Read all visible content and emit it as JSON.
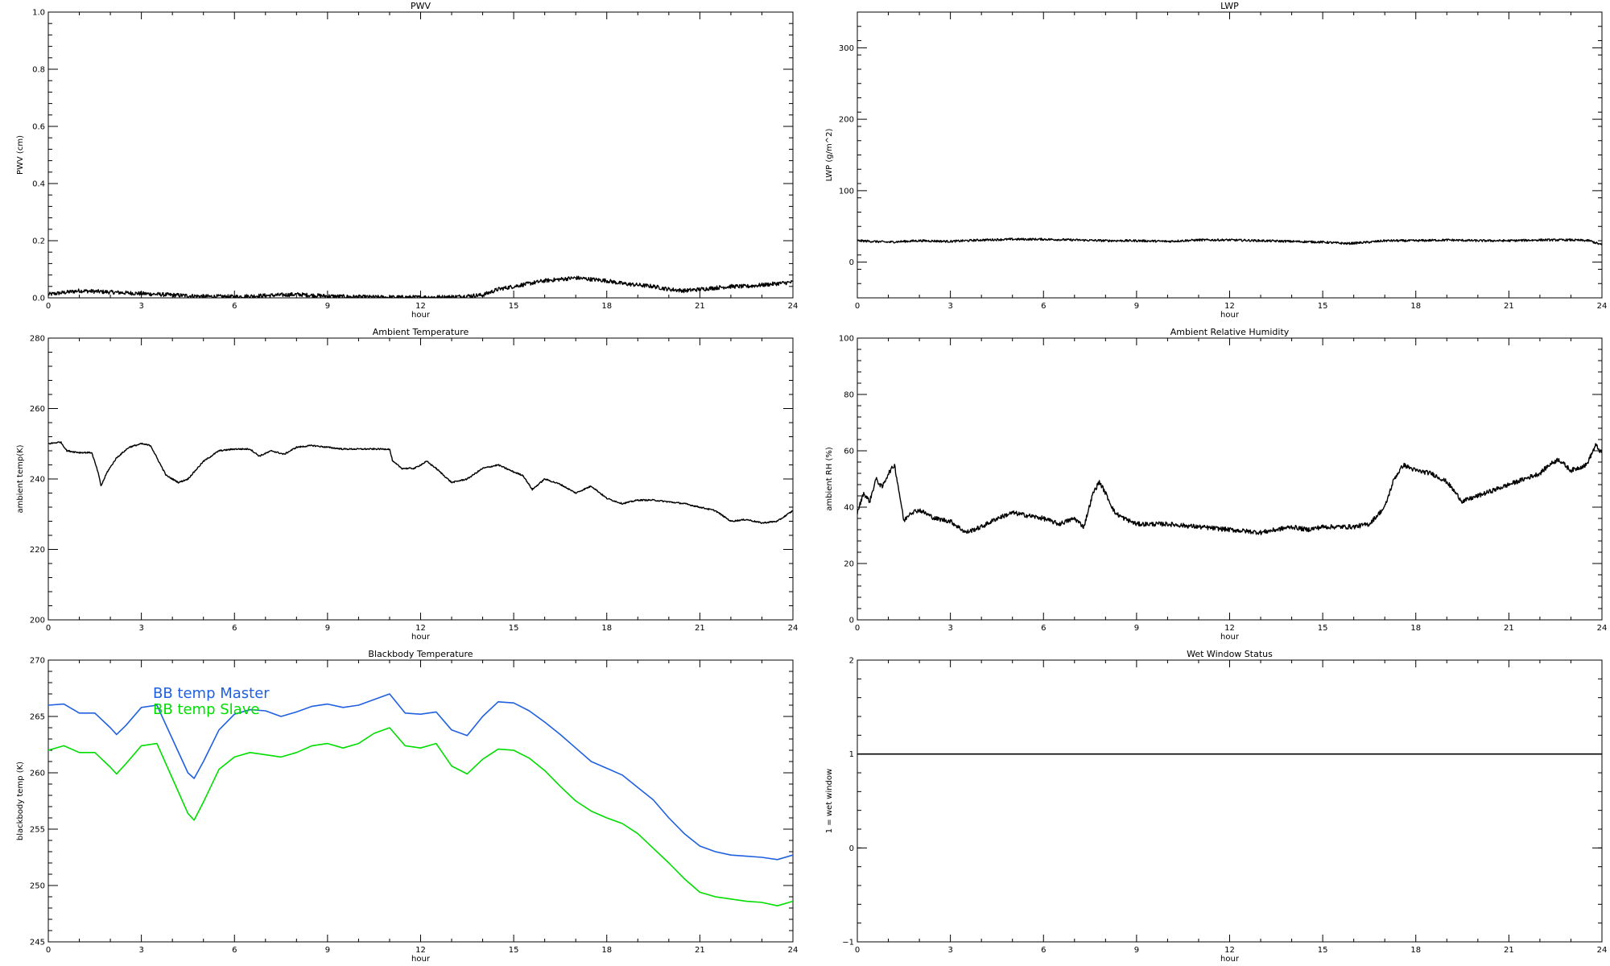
{
  "chart_data": [
    {
      "id": "pwv",
      "type": "line",
      "title": "PWV",
      "xlabel": "hour",
      "ylabel": "PWV (cm)",
      "xlim": [
        0,
        24
      ],
      "ylim": [
        0,
        1
      ],
      "xticks": [
        "0",
        "3",
        "6",
        "9",
        "12",
        "15",
        "18",
        "21",
        "24"
      ],
      "yticks": [
        "0.0",
        "0.2",
        "0.4",
        "0.6",
        "0.8",
        "1.0"
      ],
      "xtick_values": [
        0,
        3,
        6,
        9,
        12,
        15,
        18,
        21,
        24
      ],
      "ytick_values": [
        0,
        0.2,
        0.4,
        0.6,
        0.8,
        1.0
      ],
      "noise": 0.007,
      "series": [
        {
          "color": "#000000",
          "x": [
            0,
            1,
            2,
            3,
            4,
            5,
            6,
            7,
            8,
            9,
            10,
            11,
            12,
            13,
            14,
            14.5,
            15,
            15.5,
            16,
            16.5,
            17,
            17.5,
            18,
            18.5,
            19,
            19.5,
            20,
            20.5,
            21,
            21.5,
            22,
            22.5,
            23,
            23.5,
            24
          ],
          "y": [
            0.012,
            0.025,
            0.02,
            0.015,
            0.01,
            0.005,
            0.004,
            0.008,
            0.012,
            0.006,
            0.003,
            0.002,
            0.002,
            0.003,
            0.01,
            0.03,
            0.04,
            0.05,
            0.06,
            0.065,
            0.07,
            0.065,
            0.06,
            0.05,
            0.045,
            0.04,
            0.03,
            0.025,
            0.03,
            0.035,
            0.04,
            0.04,
            0.045,
            0.05,
            0.055
          ]
        }
      ]
    },
    {
      "id": "lwp",
      "type": "line",
      "title": "LWP",
      "xlabel": "hour",
      "ylabel": "LWP (g/m^2)",
      "xlim": [
        0,
        24
      ],
      "ylim": [
        -50,
        350
      ],
      "xticks": [
        "0",
        "3",
        "6",
        "9",
        "12",
        "15",
        "18",
        "21",
        "24"
      ],
      "yticks": [
        "0",
        "100",
        "200",
        "300"
      ],
      "xtick_values": [
        0,
        3,
        6,
        9,
        12,
        15,
        18,
        21,
        24
      ],
      "ytick_values": [
        0,
        100,
        200,
        300
      ],
      "noise": 1.5,
      "series": [
        {
          "color": "#000000",
          "x": [
            0,
            1,
            2,
            3,
            4,
            5,
            6,
            7,
            8,
            9,
            10,
            11,
            12,
            13,
            14,
            15,
            15.8,
            16.5,
            17,
            18,
            19,
            20,
            21,
            22,
            23,
            23.6,
            24
          ],
          "y": [
            30,
            28,
            30,
            29,
            31,
            32,
            32,
            31,
            30,
            30,
            29,
            31,
            31,
            30,
            29,
            28,
            26,
            28,
            30,
            30,
            31,
            30,
            30,
            31,
            31,
            30,
            24
          ]
        }
      ]
    },
    {
      "id": "ambient-temperature",
      "type": "line",
      "title": "Ambient Temperature",
      "xlabel": "hour",
      "ylabel": "ambient temp(K)",
      "xlim": [
        0,
        24
      ],
      "ylim": [
        200,
        280
      ],
      "xticks": [
        "0",
        "3",
        "6",
        "9",
        "12",
        "15",
        "18",
        "21",
        "24"
      ],
      "yticks": [
        "200",
        "220",
        "240",
        "260",
        "280"
      ],
      "xtick_values": [
        0,
        3,
        6,
        9,
        12,
        15,
        18,
        21,
        24
      ],
      "ytick_values": [
        200,
        220,
        240,
        260,
        280
      ],
      "noise": 0.2,
      "series": [
        {
          "color": "#000000",
          "x": [
            0,
            0.4,
            0.6,
            1.0,
            1.4,
            1.6,
            1.7,
            1.9,
            2.2,
            2.6,
            3.0,
            3.3,
            3.5,
            3.8,
            4.2,
            4.5,
            5.0,
            5.5,
            6.0,
            6.5,
            6.8,
            7.2,
            7.6,
            8.0,
            8.5,
            9.0,
            9.5,
            10.0,
            10.5,
            11.0,
            11.1,
            11.4,
            11.8,
            12.2,
            12.5,
            13.0,
            13.5,
            14.0,
            14.5,
            15.0,
            15.3,
            15.6,
            16.0,
            16.5,
            17.0,
            17.5,
            18.0,
            18.5,
            19.0,
            19.5,
            20.0,
            20.5,
            21.0,
            21.5,
            22.0,
            22.5,
            23.0,
            23.5,
            24.0
          ],
          "y": [
            250,
            250.5,
            248,
            247.5,
            247.5,
            242,
            238,
            242,
            246,
            249,
            250,
            249.5,
            246,
            241,
            239,
            240,
            245,
            248,
            248.5,
            248.5,
            246.5,
            248,
            247,
            249,
            249.5,
            249,
            248.5,
            248.5,
            248.5,
            248.5,
            245,
            243,
            243,
            245,
            243,
            239,
            240,
            243,
            244,
            242,
            241,
            237,
            240,
            238.5,
            236,
            238,
            234.5,
            233,
            234,
            234,
            233.5,
            233,
            232,
            231,
            228,
            228.5,
            227.5,
            228,
            231
          ]
        }
      ]
    },
    {
      "id": "ambient-relative-humidity",
      "type": "line",
      "title": "Ambient Relative Humidity",
      "xlabel": "hour",
      "ylabel": "ambient RH (%)",
      "xlim": [
        0,
        24
      ],
      "ylim": [
        0,
        100
      ],
      "xticks": [
        "0",
        "3",
        "6",
        "9",
        "12",
        "15",
        "18",
        "21",
        "24"
      ],
      "yticks": [
        "0",
        "20",
        "40",
        "60",
        "80",
        "100"
      ],
      "xtick_values": [
        0,
        3,
        6,
        9,
        12,
        15,
        18,
        21,
        24
      ],
      "ytick_values": [
        0,
        20,
        40,
        60,
        80,
        100
      ],
      "noise": 0.8,
      "series": [
        {
          "color": "#000000",
          "x": [
            0,
            0.2,
            0.4,
            0.6,
            0.8,
            1.0,
            1.2,
            1.4,
            1.5,
            1.7,
            2.0,
            2.5,
            3.0,
            3.5,
            4.0,
            4.5,
            5.0,
            5.5,
            6.0,
            6.5,
            7.0,
            7.3,
            7.6,
            7.8,
            8.0,
            8.3,
            8.6,
            9.0,
            10.0,
            11.0,
            12.0,
            13.0,
            14.0,
            14.5,
            15.0,
            15.5,
            16.0,
            16.5,
            17.0,
            17.3,
            17.6,
            18.0,
            18.5,
            19.0,
            19.5,
            20.0,
            20.5,
            21.0,
            21.5,
            22.0,
            22.3,
            22.6,
            23.0,
            23.5,
            23.8,
            24.0
          ],
          "y": [
            38,
            45,
            42,
            50,
            47,
            52,
            55,
            42,
            35,
            38,
            39,
            36,
            35,
            31,
            33,
            36,
            38,
            37,
            36,
            34,
            36,
            33,
            45,
            49,
            45,
            38,
            36,
            34,
            34,
            33,
            32,
            31,
            33,
            32,
            33,
            33,
            33,
            34,
            40,
            50,
            55,
            53,
            52,
            49,
            42,
            44,
            46,
            48,
            50,
            52,
            55,
            57,
            53,
            55,
            62,
            59
          ]
        }
      ]
    },
    {
      "id": "blackbody-temperature",
      "type": "line",
      "title": "Blackbody Temperature",
      "xlabel": "hour",
      "ylabel": "blackbody temp (K)",
      "xlim": [
        0,
        24
      ],
      "ylim": [
        245,
        270
      ],
      "xticks": [
        "0",
        "3",
        "6",
        "9",
        "12",
        "15",
        "18",
        "21",
        "24"
      ],
      "yticks": [
        "245",
        "250",
        "255",
        "260",
        "265",
        "270"
      ],
      "xtick_values": [
        0,
        3,
        6,
        9,
        12,
        15,
        18,
        21,
        24
      ],
      "ytick_values": [
        245,
        250,
        255,
        260,
        265,
        270
      ],
      "noise": 0,
      "series": [
        {
          "name": "BB temp Master",
          "color": "#2060e0",
          "x": [
            0,
            0.5,
            1.0,
            1.5,
            2.0,
            2.2,
            2.5,
            3.0,
            3.5,
            4.0,
            4.5,
            4.7,
            5.0,
            5.5,
            6.0,
            6.5,
            7.0,
            7.5,
            8.0,
            8.5,
            9.0,
            9.5,
            10.0,
            10.5,
            11.0,
            11.5,
            12.0,
            12.5,
            13.0,
            13.5,
            14.0,
            14.5,
            15.0,
            15.5,
            16.0,
            16.5,
            17.0,
            17.5,
            18.0,
            18.5,
            19.0,
            19.5,
            20.0,
            20.5,
            21.0,
            21.5,
            22.0,
            22.5,
            23.0,
            23.5,
            24.0
          ],
          "y": [
            266,
            266.1,
            265.3,
            265.3,
            264,
            263.4,
            264.2,
            265.8,
            266,
            263,
            260,
            259.5,
            261,
            263.8,
            265.2,
            265.6,
            265.5,
            265,
            265.4,
            265.9,
            266.1,
            265.8,
            266,
            266.5,
            267,
            265.3,
            265.2,
            265.4,
            263.8,
            263.3,
            265,
            266.3,
            266.2,
            265.5,
            264.5,
            263.4,
            262.2,
            261,
            260.4,
            259.8,
            258.7,
            257.6,
            256,
            254.6,
            253.5,
            253,
            252.7,
            252.6,
            252.5,
            252.3,
            252.7
          ]
        },
        {
          "name": "BB temp Slave",
          "color": "#00dd00",
          "x": [
            0,
            0.5,
            1.0,
            1.5,
            2.0,
            2.2,
            2.5,
            3.0,
            3.5,
            4.0,
            4.5,
            4.7,
            5.0,
            5.5,
            6.0,
            6.5,
            7.0,
            7.5,
            8.0,
            8.5,
            9.0,
            9.5,
            10.0,
            10.5,
            11.0,
            11.5,
            12.0,
            12.5,
            13.0,
            13.5,
            14.0,
            14.5,
            15.0,
            15.5,
            16.0,
            16.5,
            17.0,
            17.5,
            18.0,
            18.5,
            19.0,
            19.5,
            20.0,
            20.5,
            21.0,
            21.5,
            22.0,
            22.5,
            23.0,
            23.5,
            24.0
          ],
          "y": [
            262,
            262.4,
            261.8,
            261.8,
            260.5,
            259.9,
            260.8,
            262.4,
            262.6,
            259.5,
            256.4,
            255.8,
            257.4,
            260.3,
            261.4,
            261.8,
            261.6,
            261.4,
            261.8,
            262.4,
            262.6,
            262.2,
            262.6,
            263.5,
            264,
            262.4,
            262.2,
            262.6,
            260.6,
            259.9,
            261.2,
            262.1,
            262,
            261.3,
            260.2,
            258.8,
            257.5,
            256.6,
            256,
            255.5,
            254.6,
            253.3,
            252,
            250.6,
            249.4,
            249,
            248.8,
            248.6,
            248.5,
            248.2,
            248.6
          ]
        }
      ]
    },
    {
      "id": "wet-window-status",
      "type": "line",
      "title": "Wet Window Status",
      "xlabel": "hour",
      "ylabel": "1 = wet window",
      "xlim": [
        0,
        24
      ],
      "ylim": [
        -1,
        2
      ],
      "xticks": [
        "0",
        "3",
        "6",
        "9",
        "12",
        "15",
        "18",
        "21",
        "24"
      ],
      "yticks": [
        "−1",
        "0",
        "1",
        "2"
      ],
      "xtick_values": [
        0,
        3,
        6,
        9,
        12,
        15,
        18,
        21,
        24
      ],
      "ytick_values": [
        -1,
        0,
        1,
        2
      ],
      "noise": 0,
      "series": [
        {
          "color": "#000000",
          "x": [
            0,
            24
          ],
          "y": [
            1,
            1
          ]
        }
      ]
    }
  ]
}
